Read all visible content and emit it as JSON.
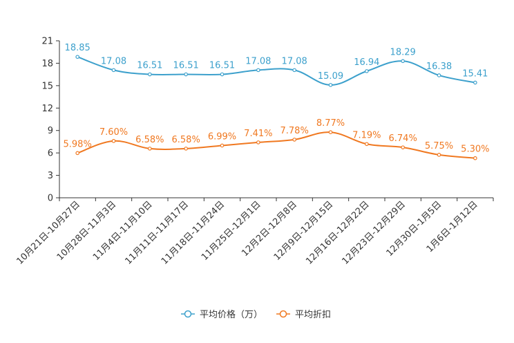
{
  "chart_data": {
    "type": "line",
    "categories": [
      "10月21日-10月27日",
      "10月28日-11月3日",
      "11月4日-11月10日",
      "11月11日-11月17日",
      "11月18日-11月24日",
      "11月25日-12月1日",
      "12月2日-12月8日",
      "12月9日-12月15日",
      "12月16日-12月22日",
      "12月23日-12月29日",
      "12月30日-1月5日",
      "1月6日-1月12日"
    ],
    "ylim": [
      0,
      21
    ],
    "yticks": [
      0,
      3,
      6,
      9,
      12,
      15,
      18,
      21
    ],
    "series": [
      {
        "name": "平均价格（万）",
        "color": "#3ca0cc",
        "values": [
          18.85,
          17.08,
          16.51,
          16.51,
          16.51,
          17.08,
          17.08,
          15.09,
          16.94,
          18.29,
          16.38,
          15.41
        ],
        "labels": [
          "18.85",
          "17.08",
          "16.51",
          "16.51",
          "16.51",
          "17.08",
          "17.08",
          "15.09",
          "16.94",
          "18.29",
          "16.38",
          "15.41"
        ]
      },
      {
        "name": "平均折扣",
        "color": "#f07820",
        "values": [
          5.98,
          7.6,
          6.58,
          6.58,
          6.99,
          7.41,
          7.78,
          8.77,
          7.19,
          6.74,
          5.75,
          5.3
        ],
        "labels": [
          "5.98%",
          "7.60%",
          "6.58%",
          "6.58%",
          "6.99%",
          "7.41%",
          "7.78%",
          "8.77%",
          "7.19%",
          "6.74%",
          "5.75%",
          "5.30%"
        ]
      }
    ],
    "legend": "bottom-center",
    "grid": false
  }
}
